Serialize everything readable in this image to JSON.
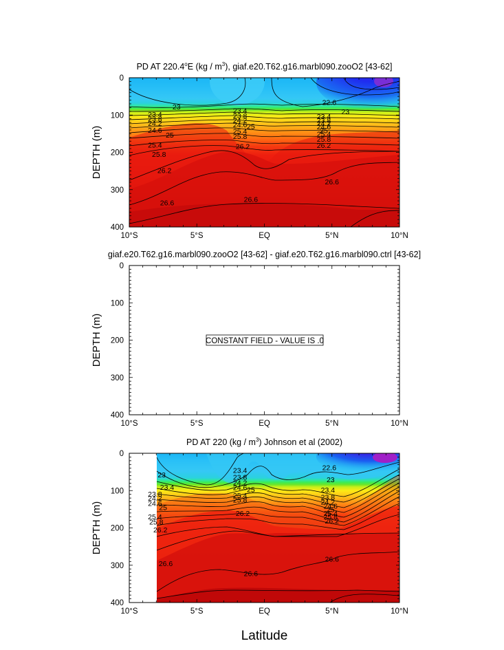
{
  "figure": {
    "xlabel": "Latitude"
  },
  "chart_data": [
    {
      "type": "heatmap",
      "title": "PD AT 220.4°E (kg / m³), giaf.e20.T62.g16.marbl090.zooO2 [43-62]",
      "title_parts": {
        "pre": "PD AT 220.4",
        "sup1": "o",
        "mid": "E (kg / m",
        "sup2": "3",
        "post": "), giaf.e20.T62.g16.marbl090.zooO2 [43-62]"
      },
      "ylabel": "DEPTH (m)",
      "x_ticks": [
        "10°S",
        "5°S",
        "EQ",
        "5°N",
        "10°N"
      ],
      "x_tick_values": [
        -10,
        -5,
        0,
        5,
        10
      ],
      "y_ticks": [
        "0",
        "100",
        "200",
        "300",
        "400"
      ],
      "y_tick_values": [
        0,
        100,
        200,
        300,
        400
      ],
      "xlim": [
        -10,
        10
      ],
      "ylim": [
        0,
        400
      ],
      "y_inverted": true,
      "x_data_start": -10,
      "contour_labels": [
        {
          "text": "23",
          "x": -6.5,
          "y": 77
        },
        {
          "text": "23.4",
          "x": -8.1,
          "y": 98
        },
        {
          "text": "23.8",
          "x": -8.1,
          "y": 110
        },
        {
          "text": "24.2",
          "x": -8.1,
          "y": 122
        },
        {
          "text": "24.6",
          "x": -8.1,
          "y": 140
        },
        {
          "text": "25",
          "x": -7.0,
          "y": 153
        },
        {
          "text": "25.4",
          "x": -8.1,
          "y": 180
        },
        {
          "text": "25.8",
          "x": -7.8,
          "y": 205
        },
        {
          "text": "26.2",
          "x": -7.4,
          "y": 248
        },
        {
          "text": "26.6",
          "x": -7.2,
          "y": 335
        },
        {
          "text": "26.6",
          "x": -1.0,
          "y": 325
        },
        {
          "text": "23.4",
          "x": -1.8,
          "y": 88
        },
        {
          "text": "23.8",
          "x": -1.8,
          "y": 101
        },
        {
          "text": "24.2",
          "x": -1.8,
          "y": 113
        },
        {
          "text": "24.6",
          "x": -1.8,
          "y": 125
        },
        {
          "text": "25",
          "x": -1.0,
          "y": 130
        },
        {
          "text": "25.4",
          "x": -1.8,
          "y": 143
        },
        {
          "text": "25.8",
          "x": -1.8,
          "y": 157
        },
        {
          "text": "26.2",
          "x": -1.6,
          "y": 183
        },
        {
          "text": "22.6",
          "x": 4.8,
          "y": 65
        },
        {
          "text": "23",
          "x": 6.0,
          "y": 90
        },
        {
          "text": "23.4",
          "x": 4.4,
          "y": 103
        },
        {
          "text": "23.8",
          "x": 4.4,
          "y": 113
        },
        {
          "text": "24.2",
          "x": 4.4,
          "y": 122
        },
        {
          "text": "24.6",
          "x": 4.4,
          "y": 131
        },
        {
          "text": "25",
          "x": 4.4,
          "y": 141
        },
        {
          "text": "25.4",
          "x": 4.4,
          "y": 150
        },
        {
          "text": "25.8",
          "x": 4.4,
          "y": 164
        },
        {
          "text": "26.2",
          "x": 4.4,
          "y": 181
        },
        {
          "text": "26.6",
          "x": 5.0,
          "y": 278
        }
      ]
    },
    {
      "type": "heatmap",
      "title": "giaf.e20.T62.g16.marbl090.zooO2 [43-62] - giaf.e20.T62.g16.marbl090.ctrl [43-62]",
      "ylabel": "DEPTH (m)",
      "x_ticks": [
        "10°S",
        "5°S",
        "EQ",
        "5°N",
        "10°N"
      ],
      "x_tick_values": [
        -10,
        -5,
        0,
        5,
        10
      ],
      "y_ticks": [
        "0",
        "100",
        "200",
        "300",
        "400"
      ],
      "y_tick_values": [
        0,
        100,
        200,
        300,
        400
      ],
      "xlim": [
        -10,
        10
      ],
      "ylim": [
        0,
        400
      ],
      "y_inverted": true,
      "annotation": "CONSTANT FIELD - VALUE IS .0",
      "constant_value": 0.0
    },
    {
      "type": "heatmap",
      "title": "PD AT 220 (kg / m³) Johnson et al (2002)",
      "title_parts": {
        "pre": "PD AT 220 (kg / m",
        "sup": "3",
        "post": ") Johnson et al (2002)"
      },
      "ylabel": "DEPTH (m)",
      "x_ticks": [
        "10°S",
        "5°S",
        "EQ",
        "5°N",
        "10°N"
      ],
      "x_tick_values": [
        -10,
        -5,
        0,
        5,
        10
      ],
      "y_ticks": [
        "0",
        "100",
        "200",
        "300",
        "400"
      ],
      "y_tick_values": [
        0,
        100,
        200,
        300,
        400
      ],
      "xlim": [
        -10,
        10
      ],
      "ylim": [
        0,
        400
      ],
      "y_inverted": true,
      "x_data_start": -8,
      "contour_labels": [
        {
          "text": "23",
          "x": -7.6,
          "y": 57
        },
        {
          "text": "23.4",
          "x": -7.2,
          "y": 90
        },
        {
          "text": "23.8",
          "x": -8.1,
          "y": 109
        },
        {
          "text": "24.2",
          "x": -8.1,
          "y": 120
        },
        {
          "text": "24.6",
          "x": -8.1,
          "y": 134
        },
        {
          "text": "25",
          "x": -7.5,
          "y": 145
        },
        {
          "text": "25.4",
          "x": -8.1,
          "y": 170
        },
        {
          "text": "25.8",
          "x": -8.0,
          "y": 183
        },
        {
          "text": "26.2",
          "x": -7.7,
          "y": 205
        },
        {
          "text": "26.6",
          "x": -7.3,
          "y": 295
        },
        {
          "text": "26.6",
          "x": -1.0,
          "y": 322
        },
        {
          "text": "23.4",
          "x": -1.8,
          "y": 45
        },
        {
          "text": "23.8",
          "x": -1.8,
          "y": 64
        },
        {
          "text": "24.2",
          "x": -1.8,
          "y": 78
        },
        {
          "text": "24.6",
          "x": -1.8,
          "y": 91
        },
        {
          "text": "25",
          "x": -1.0,
          "y": 97
        },
        {
          "text": "25.4",
          "x": -1.8,
          "y": 112
        },
        {
          "text": "25.8",
          "x": -1.8,
          "y": 124
        },
        {
          "text": "26.2",
          "x": -1.6,
          "y": 160
        },
        {
          "text": "22.6",
          "x": 4.8,
          "y": 38
        },
        {
          "text": "23",
          "x": 4.9,
          "y": 70
        },
        {
          "text": "23.4",
          "x": 4.7,
          "y": 98
        },
        {
          "text": "23.8",
          "x": 4.7,
          "y": 117
        },
        {
          "text": "24.2",
          "x": 4.7,
          "y": 130
        },
        {
          "text": "24.6",
          "x": 4.9,
          "y": 141
        },
        {
          "text": "25",
          "x": 4.9,
          "y": 150
        },
        {
          "text": "25.4",
          "x": 4.9,
          "y": 160
        },
        {
          "text": "25.8",
          "x": 4.9,
          "y": 170
        },
        {
          "text": "26.2",
          "x": 5.0,
          "y": 181
        },
        {
          "text": "26.6",
          "x": 5.0,
          "y": 283
        }
      ]
    }
  ]
}
